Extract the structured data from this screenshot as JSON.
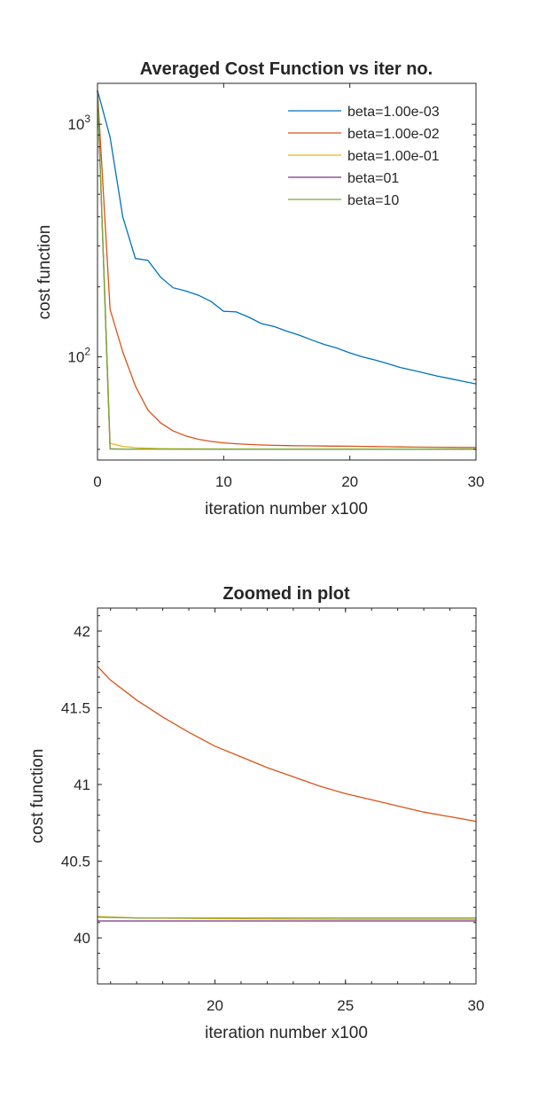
{
  "chart_data": [
    {
      "type": "line",
      "title": "Averaged Cost Function vs iter no.",
      "xlabel": "iteration number x100",
      "ylabel": "cost function",
      "yscale": "log",
      "xlim": [
        0,
        30
      ],
      "ylim": [
        36,
        1500
      ],
      "xticks": [
        "0",
        "10",
        "20",
        "30"
      ],
      "xtick_values": [
        0,
        10,
        20,
        30
      ],
      "yticks": [
        {
          "base": "10",
          "exp": "2",
          "value": 100
        },
        {
          "base": "10",
          "exp": "3",
          "value": 1000
        }
      ],
      "legend_position": "top-right",
      "grid": false,
      "series": [
        {
          "name": "beta=1.00e-03",
          "color": "#0072BD",
          "x": [
            0,
            1,
            2,
            3,
            4,
            5,
            6,
            7,
            8,
            9,
            10,
            11,
            12,
            13,
            14,
            15,
            16,
            17,
            18,
            19,
            20,
            21,
            22,
            23,
            24,
            25,
            26,
            27,
            28,
            29,
            30
          ],
          "y": [
            1400,
            880,
            400,
            265,
            260,
            220,
            198,
            192,
            184,
            173,
            157,
            156,
            148,
            139,
            135,
            129,
            124,
            118,
            113,
            109,
            104,
            100,
            97,
            93.5,
            90,
            87.5,
            85,
            82.5,
            80.5,
            78.5,
            76.5
          ]
        },
        {
          "name": "beta=1.00e-02",
          "color": "#D95319",
          "x": [
            0,
            1,
            2,
            3,
            4,
            5,
            6,
            7,
            8,
            9,
            10,
            11,
            12,
            13,
            14,
            15,
            16,
            17,
            18,
            19,
            20,
            21,
            22,
            23,
            24,
            25,
            26,
            27,
            28,
            29,
            30
          ],
          "y": [
            1400,
            160,
            105,
            75,
            59,
            52,
            48,
            45.7,
            44.2,
            43.3,
            42.7,
            42.3,
            42.0,
            41.8,
            41.65,
            41.55,
            41.48,
            41.42,
            41.37,
            41.32,
            41.27,
            41.2,
            41.12,
            41.05,
            40.98,
            40.93,
            40.89,
            40.85,
            40.81,
            40.78,
            40.76
          ]
        },
        {
          "name": "beta=1.00e-01",
          "color": "#EDB120",
          "x": [
            0,
            1,
            2,
            3,
            4,
            5,
            6,
            8,
            10,
            15,
            20,
            25,
            30
          ],
          "y": [
            1400,
            42.5,
            41.2,
            40.7,
            40.45,
            40.3,
            40.25,
            40.2,
            40.18,
            40.14,
            40.13,
            40.12,
            40.12
          ]
        },
        {
          "name": "beta=01",
          "color": "#7E2F8E",
          "x": [
            0,
            1,
            2,
            5,
            10,
            15,
            20,
            25,
            30
          ],
          "y": [
            1400,
            40.2,
            40.15,
            40.13,
            40.12,
            40.12,
            40.11,
            40.11,
            40.11
          ]
        },
        {
          "name": "beta=10",
          "color": "#77AC30",
          "x": [
            0,
            1,
            2,
            5,
            10,
            15,
            20,
            25,
            30
          ],
          "y": [
            1400,
            40.15,
            40.14,
            40.13,
            40.13,
            40.13,
            40.13,
            40.13,
            40.13
          ]
        }
      ]
    },
    {
      "type": "line",
      "title": "Zoomed in plot",
      "xlabel": "iteration number x100",
      "ylabel": "cost function",
      "xlim": [
        15.5,
        30
      ],
      "ylim": [
        39.7,
        42.15
      ],
      "xticks": [
        "20",
        "25",
        "30"
      ],
      "xtick_values": [
        20,
        25,
        30
      ],
      "yticks": [
        "40",
        "40.5",
        "41",
        "41.5",
        "42"
      ],
      "ytick_values": [
        40,
        40.5,
        41,
        41.5,
        42
      ],
      "grid": false,
      "series": [
        {
          "color": "#D95319",
          "x": [
            15.5,
            16,
            17,
            18,
            19,
            20,
            21,
            22,
            23,
            24,
            25,
            26,
            27,
            28,
            29,
            30
          ],
          "y": [
            41.77,
            41.68,
            41.55,
            41.44,
            41.34,
            41.25,
            41.18,
            41.11,
            41.05,
            40.99,
            40.94,
            40.9,
            40.86,
            40.82,
            40.79,
            40.76
          ]
        },
        {
          "color": "#EDB120",
          "x": [
            15.5,
            17,
            20,
            25,
            30
          ],
          "y": [
            40.14,
            40.13,
            40.125,
            40.12,
            40.12
          ]
        },
        {
          "color": "#7E2F8E",
          "x": [
            15.5,
            20,
            25,
            30
          ],
          "y": [
            40.11,
            40.11,
            40.11,
            40.11
          ]
        },
        {
          "color": "#77AC30",
          "x": [
            15.5,
            17,
            20,
            25,
            30
          ],
          "y": [
            40.135,
            40.13,
            40.13,
            40.13,
            40.13
          ]
        }
      ]
    }
  ]
}
